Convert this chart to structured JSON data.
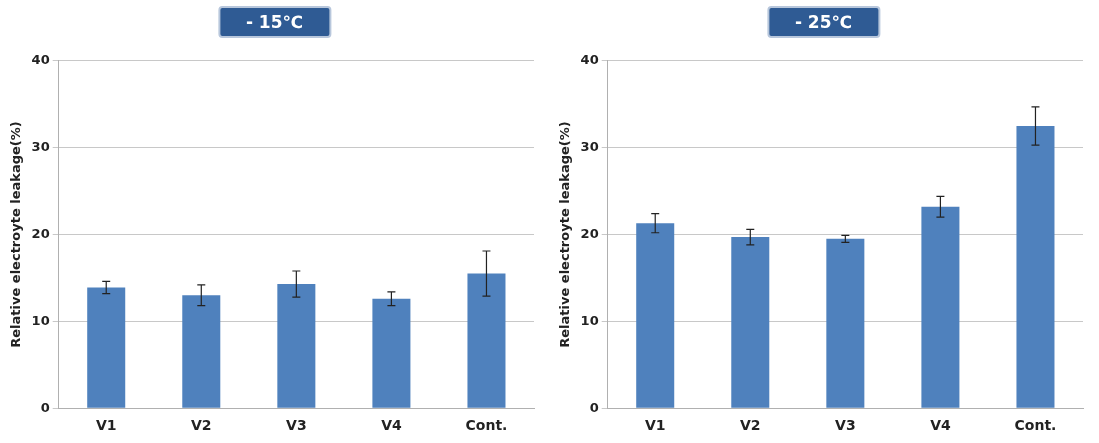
{
  "chart_data": [
    {
      "type": "bar",
      "title": "- 15℃",
      "ylabel": "Relative electroyte leakage(%)",
      "categories": [
        "V1",
        "V2",
        "V3",
        "V4",
        "Cont."
      ],
      "values": [
        13.9,
        13.0,
        14.3,
        12.6,
        15.5
      ],
      "errors": [
        0.7,
        1.2,
        1.5,
        0.8,
        2.6
      ],
      "color": "#4f81bd",
      "ylim": [
        0,
        40
      ],
      "yticks": [
        0,
        10,
        20,
        30,
        40
      ],
      "grid": "y",
      "legend": false
    },
    {
      "type": "bar",
      "title": "- 25℃",
      "ylabel": "Relative electroyte leakage(%)",
      "categories": [
        "V1",
        "V2",
        "V3",
        "V4",
        "Cont."
      ],
      "values": [
        21.3,
        19.7,
        19.5,
        23.2,
        32.5
      ],
      "errors": [
        1.1,
        0.9,
        0.4,
        1.2,
        2.2
      ],
      "color": "#4f81bd",
      "ylim": [
        0,
        40
      ],
      "yticks": [
        0,
        10,
        20,
        30,
        40
      ],
      "grid": "y",
      "legend": false
    }
  ]
}
